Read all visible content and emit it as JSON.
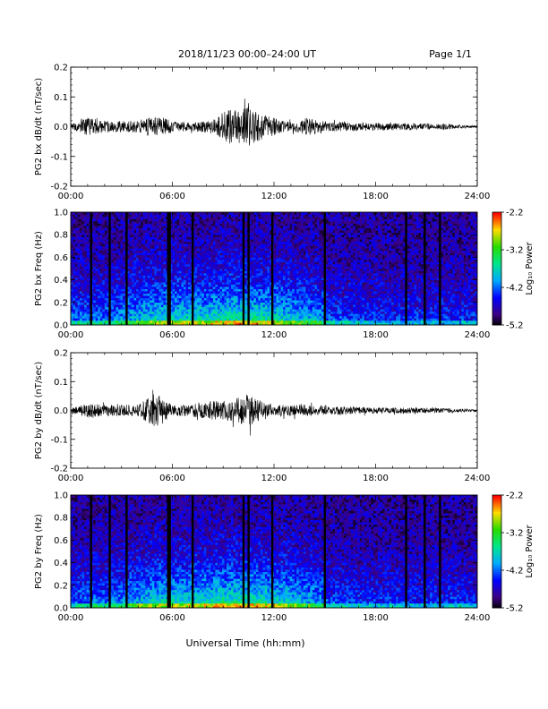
{
  "header": {
    "date_range": "2018/11/23  00:00–24:00 UT",
    "page": "Page 1/1"
  },
  "footer": {
    "xlabel": "Universal Time (hh:mm)"
  },
  "colors": {
    "trace": "#000000",
    "axis": "#000000",
    "background": "#ffffff"
  },
  "chart_data": [
    {
      "type": "line",
      "ylabel": "PG2 bx dB/dt (nT/sec)",
      "xlim": [
        0,
        24
      ],
      "ylim": [
        -0.2,
        0.2
      ],
      "y_ticks": [
        "0.2",
        "0.1",
        "0.0",
        "-0.1",
        "-0.2"
      ],
      "x_ticks": [
        "00:00",
        "06:00",
        "12:00",
        "18:00",
        "24:00"
      ],
      "series": [
        {
          "envelope_x": [
            0,
            0.5,
            1,
            2,
            3,
            4,
            5,
            5.5,
            6,
            7,
            8,
            8.5,
            9,
            9.5,
            10,
            10.5,
            11,
            12,
            13,
            14,
            15,
            16,
            17,
            18,
            19,
            20,
            21,
            22,
            23,
            24
          ],
          "envelope_amp": [
            0.008,
            0.02,
            0.03,
            0.02,
            0.02,
            0.02,
            0.035,
            0.03,
            0.02,
            0.015,
            0.02,
            0.025,
            0.05,
            0.06,
            0.055,
            0.065,
            0.05,
            0.03,
            0.015,
            0.03,
            0.02,
            0.015,
            0.015,
            0.012,
            0.012,
            0.012,
            0.01,
            0.01,
            0.006,
            0.004
          ]
        }
      ]
    },
    {
      "type": "heatmap",
      "ylabel": "PG2 bx Freq (Hz)",
      "xlim": [
        0,
        24
      ],
      "ylim": [
        0,
        1.0
      ],
      "y_ticks": [
        "1.0",
        "0.8",
        "0.6",
        "0.4",
        "0.2",
        "0.0"
      ],
      "x_ticks": [
        "00:00",
        "06:00",
        "12:00",
        "18:00",
        "24:00"
      ],
      "colorbar": {
        "label": "Log₁₀ Power",
        "range": [
          -5.2,
          -2.2
        ],
        "ticks": [
          "-2.2",
          "-3.2",
          "-4.2",
          "-5.2"
        ]
      },
      "gap_hours": [
        1.2,
        2.3,
        3.3,
        5.75,
        5.85,
        7.2,
        10.2,
        10.5,
        11.9,
        15.0,
        19.8,
        20.9,
        21.8
      ]
    },
    {
      "type": "line",
      "ylabel": "PG2 by dB/dt (nT/sec)",
      "xlim": [
        0,
        24
      ],
      "ylim": [
        -0.2,
        0.2
      ],
      "y_ticks": [
        "0.2",
        "0.1",
        "0.0",
        "-0.1",
        "-0.2"
      ],
      "x_ticks": [
        "00:00",
        "06:00",
        "12:00",
        "18:00",
        "24:00"
      ],
      "series": [
        {
          "envelope_x": [
            0,
            0.5,
            1,
            2,
            3,
            4,
            4.5,
            5,
            5.5,
            6,
            7,
            8,
            8.5,
            9,
            9.5,
            10,
            10.5,
            11,
            12,
            13,
            14,
            15,
            16,
            17,
            18,
            19,
            20,
            21,
            22,
            23,
            24
          ],
          "envelope_amp": [
            0.01,
            0.015,
            0.025,
            0.02,
            0.02,
            0.02,
            0.04,
            0.06,
            0.04,
            0.02,
            0.02,
            0.03,
            0.035,
            0.035,
            0.04,
            0.045,
            0.06,
            0.04,
            0.02,
            0.02,
            0.02,
            0.015,
            0.015,
            0.012,
            0.01,
            0.01,
            0.01,
            0.01,
            0.008,
            0.006,
            0.004
          ]
        }
      ]
    },
    {
      "type": "heatmap",
      "ylabel": "PG2 by Freq (Hz)",
      "xlim": [
        0,
        24
      ],
      "ylim": [
        0,
        1.0
      ],
      "y_ticks": [
        "1.0",
        "0.8",
        "0.6",
        "0.4",
        "0.2",
        "0.0"
      ],
      "x_ticks": [
        "00:00",
        "06:00",
        "12:00",
        "18:00",
        "24:00"
      ],
      "colorbar": {
        "label": "Log₁₀ Power",
        "range": [
          -5.2,
          -2.2
        ],
        "ticks": [
          "-2.2",
          "-3.2",
          "-4.2",
          "-5.2"
        ]
      },
      "gap_hours": [
        1.2,
        2.3,
        3.3,
        5.75,
        5.85,
        7.2,
        10.2,
        10.5,
        11.9,
        15.0,
        19.8,
        20.9,
        21.8
      ]
    }
  ]
}
